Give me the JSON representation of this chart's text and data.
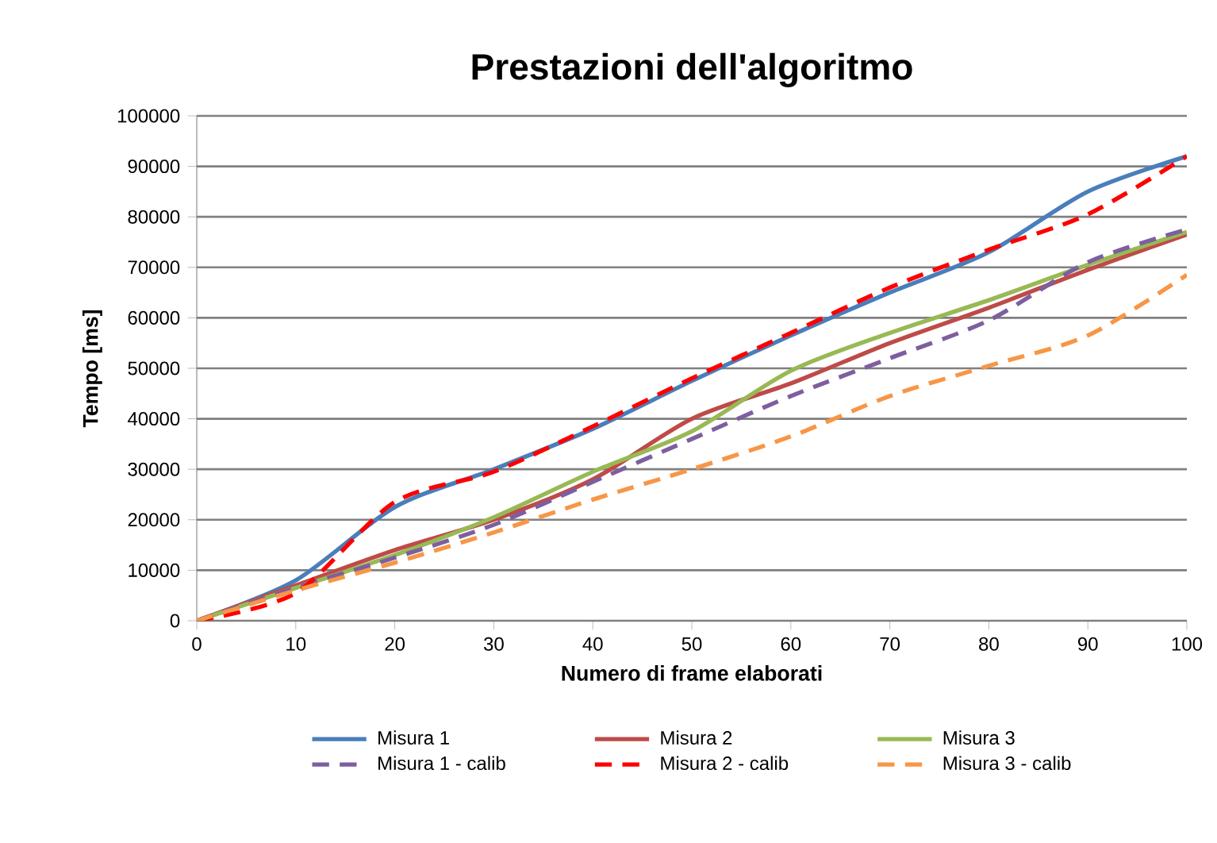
{
  "chart_data": {
    "type": "line",
    "title": "Prestazioni dell'algoritmo",
    "xlabel": "Numero di frame elaborati",
    "ylabel": "Tempo [ms]",
    "x": [
      0,
      10,
      20,
      30,
      40,
      50,
      60,
      70,
      80,
      90,
      100
    ],
    "series": [
      {
        "name": "Misura 1",
        "color": "#4a7ebb",
        "line_style": "solid",
        "values": [
          0,
          8000,
          22500,
          30000,
          38000,
          47500,
          56500,
          65000,
          73000,
          85000,
          92000
        ]
      },
      {
        "name": "Misura 2",
        "color": "#be4b48",
        "line_style": "solid",
        "values": [
          0,
          7000,
          14000,
          20000,
          28000,
          40000,
          47000,
          55000,
          62000,
          69500,
          76500
        ]
      },
      {
        "name": "Misura 3",
        "color": "#98b954",
        "line_style": "solid",
        "values": [
          0,
          6500,
          13000,
          20500,
          29500,
          37500,
          49500,
          57000,
          63500,
          70500,
          77000
        ]
      },
      {
        "name": "Misura 1 - calib",
        "color": "#7d5fa0",
        "line_style": "dashed",
        "values": [
          0,
          6500,
          12500,
          19000,
          27500,
          36000,
          44500,
          52000,
          59500,
          71000,
          77500
        ]
      },
      {
        "name": "Misura 2 - calib",
        "color": "#ff0000",
        "line_style": "dashed",
        "values": [
          0,
          5500,
          23500,
          29500,
          38500,
          48000,
          57000,
          66000,
          73500,
          80500,
          92000
        ]
      },
      {
        "name": "Misura 3 - calib",
        "color": "#f79646",
        "line_style": "dashed",
        "values": [
          0,
          6000,
          11500,
          17500,
          24000,
          30000,
          36500,
          44500,
          50500,
          56500,
          68500
        ]
      }
    ],
    "xlim": [
      0,
      100
    ],
    "xticks": [
      0,
      10,
      20,
      30,
      40,
      50,
      60,
      70,
      80,
      90,
      100
    ],
    "ylim": [
      0,
      100000
    ],
    "yticks": [
      0,
      10000,
      20000,
      30000,
      40000,
      50000,
      60000,
      70000,
      80000,
      90000,
      100000
    ],
    "grid": "y",
    "legend": "bottom",
    "marker": "none"
  }
}
